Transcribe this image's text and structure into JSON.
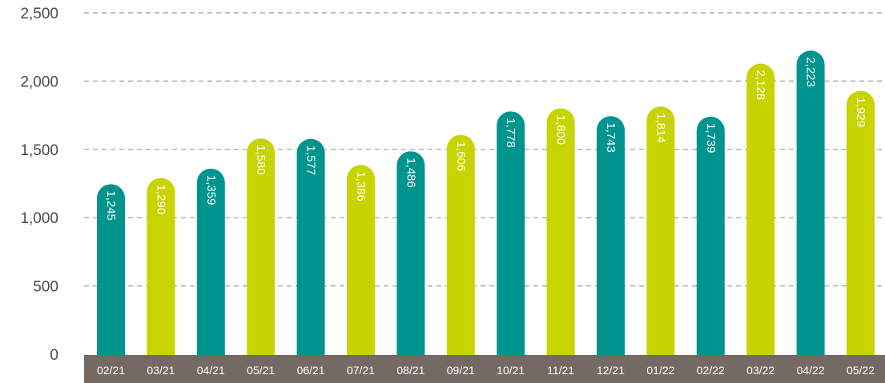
{
  "chart_data": {
    "type": "bar",
    "title": "",
    "xlabel": "",
    "ylabel": "",
    "ylim": [
      0,
      2500
    ],
    "yticks": [
      "0",
      "500",
      "1,000",
      "1,500",
      "2,000",
      "2,500"
    ],
    "grid": true,
    "categories": [
      "02/21",
      "03/21",
      "04/21",
      "05/21",
      "06/21",
      "07/21",
      "08/21",
      "09/21",
      "10/21",
      "11/21",
      "12/21",
      "01/22",
      "02/22",
      "03/22",
      "04/22",
      "05/22"
    ],
    "values": [
      1245,
      1290,
      1359,
      1580,
      1577,
      1386,
      1486,
      1606,
      1778,
      1800,
      1743,
      1814,
      1739,
      2128,
      2223,
      1929
    ],
    "data_labels": [
      "1,245",
      "1,290",
      "1,359",
      "1,580",
      "1,577",
      "1,386",
      "1,486",
      "1,606",
      "1,778",
      "1,800",
      "1,743",
      "1,814",
      "1,739",
      "2,128",
      "2,223",
      "1,929"
    ],
    "bar_colors": [
      "#00948f",
      "#c8d400",
      "#00948f",
      "#c8d400",
      "#00948f",
      "#c8d400",
      "#00948f",
      "#c8d400",
      "#00948f",
      "#c8d400",
      "#00948f",
      "#c8d400",
      "#00948f",
      "#c8d400",
      "#00948f",
      "#c8d400"
    ],
    "axis_band_color": "#746963"
  }
}
